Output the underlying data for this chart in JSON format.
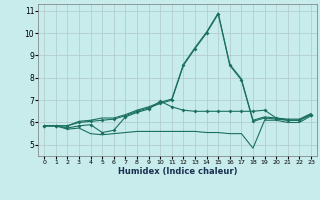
{
  "xlabel": "Humidex (Indice chaleur)",
  "xlim": [
    -0.5,
    23.5
  ],
  "ylim": [
    4.5,
    11.3
  ],
  "xticks": [
    0,
    1,
    2,
    3,
    4,
    5,
    6,
    7,
    8,
    9,
    10,
    11,
    12,
    13,
    14,
    15,
    16,
    17,
    18,
    19,
    20,
    21,
    22,
    23
  ],
  "yticks": [
    5,
    6,
    7,
    8,
    9,
    10,
    11
  ],
  "bg_color": "#c8ecec",
  "grid_color": "#b0c8c8",
  "line_color": "#1a7060",
  "lines": [
    {
      "x": [
        0,
        1,
        2,
        3,
        4,
        5,
        6,
        7,
        8,
        9,
        10,
        11,
        12,
        13,
        14,
        15,
        16,
        17,
        18,
        19,
        20,
        21,
        22,
        23
      ],
      "y": [
        5.85,
        5.85,
        5.75,
        5.85,
        5.9,
        5.55,
        5.65,
        6.25,
        6.45,
        6.6,
        6.95,
        6.7,
        6.55,
        6.5,
        6.5,
        6.5,
        6.5,
        6.5,
        6.5,
        6.55,
        6.2,
        6.1,
        6.1,
        6.35
      ],
      "marker": true
    },
    {
      "x": [
        0,
        1,
        2,
        3,
        4,
        5,
        6,
        7,
        8,
        9,
        10,
        11,
        12,
        13,
        14,
        15,
        16,
        17,
        18,
        19,
        20,
        21,
        22,
        23
      ],
      "y": [
        5.85,
        5.85,
        5.85,
        6.0,
        6.05,
        6.1,
        6.15,
        6.3,
        6.5,
        6.65,
        6.85,
        7.0,
        8.55,
        9.3,
        10.0,
        10.85,
        8.55,
        7.9,
        6.05,
        6.2,
        6.15,
        6.1,
        6.1,
        6.35
      ],
      "marker": true
    },
    {
      "x": [
        0,
        1,
        2,
        3,
        4,
        5,
        6,
        7,
        8,
        9,
        10,
        11,
        12,
        13,
        14,
        15,
        16,
        17,
        18,
        19,
        20,
        21,
        22,
        23
      ],
      "y": [
        5.85,
        5.85,
        5.7,
        5.75,
        5.5,
        5.45,
        5.5,
        5.55,
        5.6,
        5.6,
        5.6,
        5.6,
        5.6,
        5.6,
        5.55,
        5.55,
        5.5,
        5.5,
        4.85,
        6.1,
        6.1,
        6.0,
        6.0,
        6.3
      ],
      "marker": false
    },
    {
      "x": [
        0,
        1,
        2,
        3,
        4,
        5,
        6,
        7,
        8,
        9,
        10,
        11,
        12,
        13,
        14,
        15,
        16,
        17,
        18,
        19,
        20,
        21,
        22,
        23
      ],
      "y": [
        5.85,
        5.85,
        5.85,
        6.05,
        6.1,
        6.2,
        6.2,
        6.35,
        6.55,
        6.7,
        6.9,
        7.05,
        8.6,
        9.35,
        10.05,
        10.9,
        8.6,
        7.95,
        6.1,
        6.25,
        6.2,
        6.15,
        6.15,
        6.4
      ],
      "marker": false
    }
  ],
  "xtick_fontsize": 4.5,
  "ytick_fontsize": 5.5,
  "xlabel_fontsize": 6.0
}
